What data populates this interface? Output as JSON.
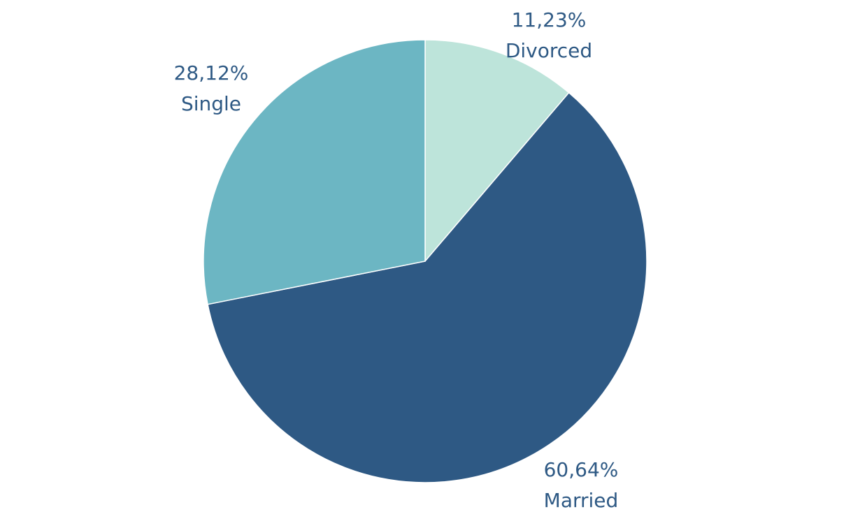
{
  "chart_data": {
    "type": "pie",
    "slices": [
      {
        "label": "Divorced",
        "value": 11.23,
        "value_label": "11,23%",
        "color": "#bde4da"
      },
      {
        "label": "Married",
        "value": 60.64,
        "value_label": "60,64%",
        "color": "#2e5984"
      },
      {
        "label": "Single",
        "value": 28.12,
        "value_label": "28,12%",
        "color": "#6cb6c3"
      }
    ],
    "start_angle": "12 o'clock",
    "direction": "clockwise",
    "legend": "none",
    "label_color": "#2e5984"
  }
}
